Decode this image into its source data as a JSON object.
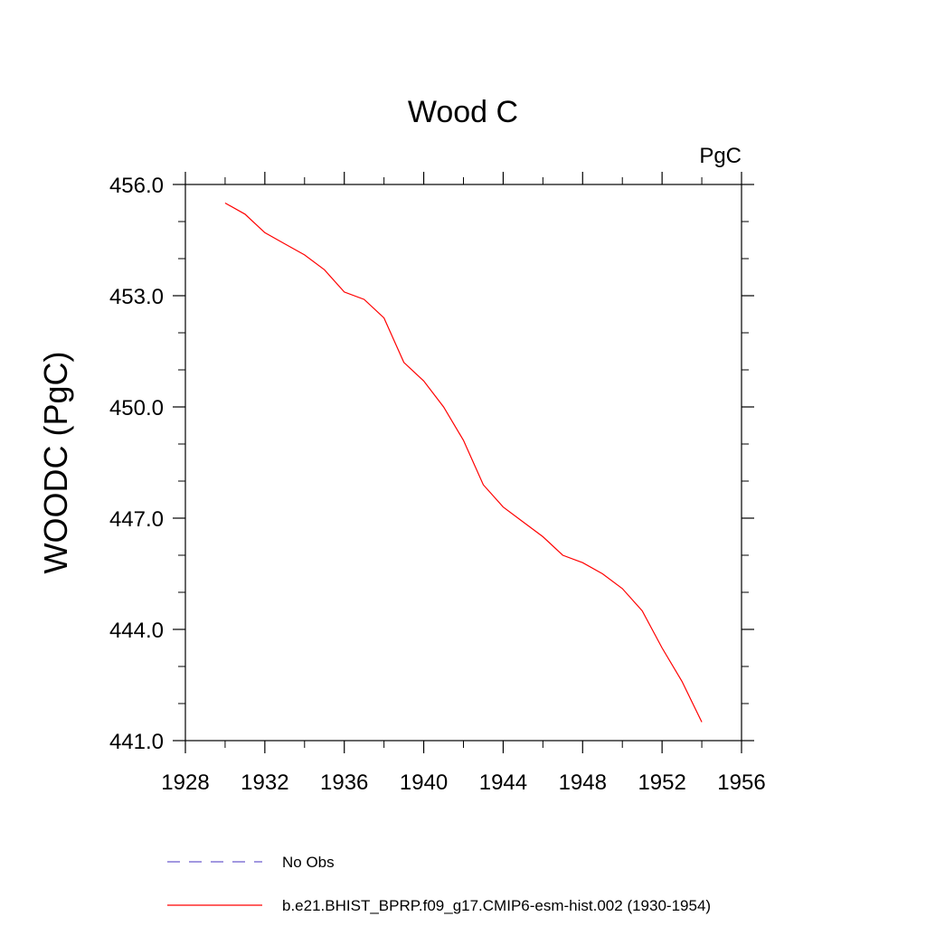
{
  "chart_data": {
    "type": "line",
    "title": "Wood C",
    "units_label": "PgC",
    "ylabel": "WOODC  (PgC)",
    "xlabel": "",
    "xlim": [
      1928,
      1956
    ],
    "ylim": [
      441.0,
      456.0
    ],
    "x_ticks": [
      1928,
      1932,
      1936,
      1940,
      1944,
      1948,
      1952,
      1956
    ],
    "x_tick_labels": [
      "1928",
      "1932",
      "1936",
      "1940",
      "1944",
      "1948",
      "1952",
      "1956"
    ],
    "y_ticks": [
      441.0,
      444.0,
      447.0,
      450.0,
      453.0,
      456.0
    ],
    "y_tick_labels": [
      "441.0",
      "444.0",
      "447.0",
      "450.0",
      "453.0",
      "456.0"
    ],
    "grid": false,
    "legend_position": "bottom",
    "series": [
      {
        "name": "No Obs",
        "color": "#6a5acd",
        "style": "dashed",
        "x": [],
        "values": []
      },
      {
        "name": "b.e21.BHIST_BPRP.f09_g17.CMIP6-esm-hist.002 (1930-1954)",
        "color": "#ff0000",
        "style": "solid",
        "x": [
          1930,
          1931,
          1932,
          1933,
          1934,
          1935,
          1936,
          1937,
          1938,
          1939,
          1940,
          1941,
          1942,
          1943,
          1944,
          1945,
          1946,
          1947,
          1948,
          1949,
          1950,
          1951,
          1952,
          1953,
          1954
        ],
        "values": [
          455.5,
          455.2,
          454.7,
          454.4,
          454.1,
          453.7,
          453.1,
          452.9,
          452.4,
          451.2,
          450.7,
          450.0,
          449.1,
          447.9,
          447.3,
          446.9,
          446.5,
          446.0,
          445.8,
          445.5,
          445.1,
          444.5,
          443.5,
          442.6,
          441.5
        ]
      }
    ]
  }
}
